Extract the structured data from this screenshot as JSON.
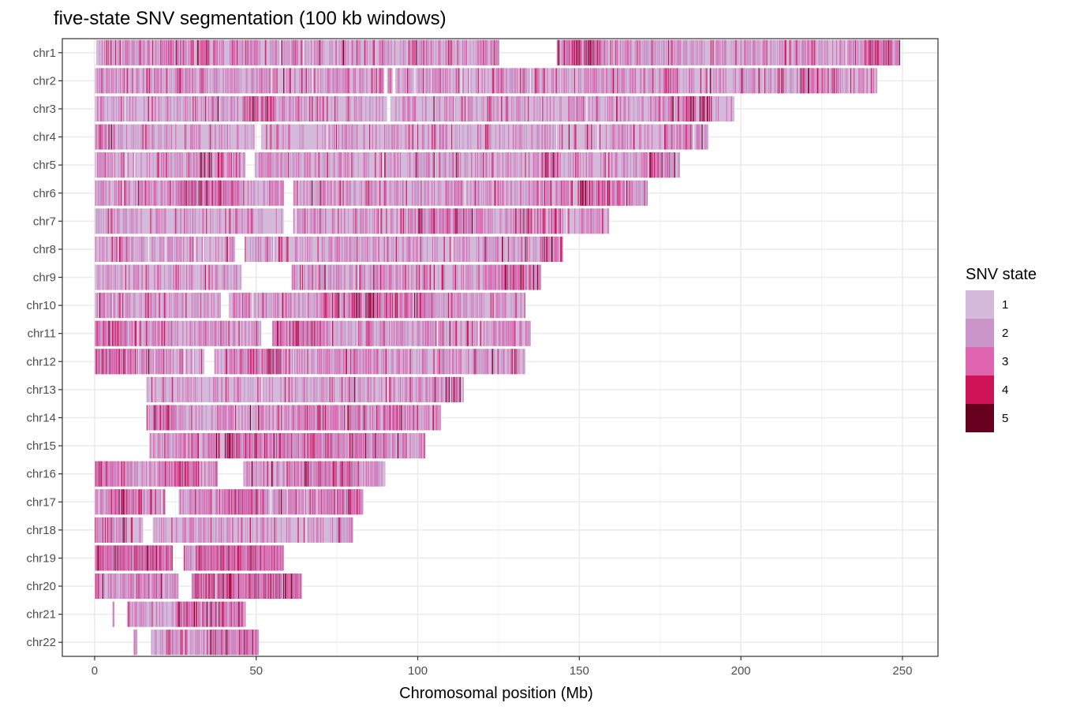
{
  "chart_data": {
    "type": "heatmap",
    "title": "five-state SNV segmentation (100 kb windows)",
    "xlabel": "Chromosomal position (Mb)",
    "ylabel": "",
    "xlim": [
      -10,
      261
    ],
    "x_ticks": [
      0,
      50,
      100,
      150,
      200,
      250
    ],
    "grid": true,
    "legend": {
      "title": "SNV state",
      "placement": "right",
      "states": [
        {
          "label": "1",
          "color": "#D4B9DA"
        },
        {
          "label": "2",
          "color": "#C994C7"
        },
        {
          "label": "3",
          "color": "#DF65B0"
        },
        {
          "label": "4",
          "color": "#CE1256"
        },
        {
          "label": "5",
          "color": "#67001F"
        }
      ]
    },
    "chromosomes": [
      {
        "name": "chr1",
        "start": 0.5,
        "end": 249,
        "gaps": [
          [
            125,
            143
          ]
        ],
        "density": 0.26,
        "hot": [
          [
            143,
            158,
            0.6
          ],
          [
            238,
            249,
            0.45
          ],
          [
            20,
            40,
            0.3
          ]
        ]
      },
      {
        "name": "chr2",
        "start": 0.1,
        "end": 242,
        "gaps": [
          [
            89.5,
            90.5
          ],
          [
            92,
            93
          ]
        ],
        "density": 0.24,
        "hot": [
          [
            25,
            30,
            0.4
          ],
          [
            175,
            180,
            0.35
          ],
          [
            218,
            230,
            0.4
          ]
        ]
      },
      {
        "name": "chr3",
        "start": 0.1,
        "end": 198,
        "gaps": [
          [
            90.5,
            91.5
          ]
        ],
        "density": 0.18,
        "hot": [
          [
            45,
            55,
            0.45
          ],
          [
            178,
            190,
            0.4
          ]
        ]
      },
      {
        "name": "chr4",
        "start": 0.1,
        "end": 190,
        "gaps": [
          [
            49.5,
            51.5
          ]
        ],
        "density": 0.17,
        "hot": [
          [
            180,
            188,
            0.4
          ],
          [
            0,
            6,
            0.35
          ]
        ]
      },
      {
        "name": "chr5",
        "start": 0.1,
        "end": 181,
        "gaps": [
          [
            46.5,
            49.5
          ]
        ],
        "density": 0.22,
        "hot": [
          [
            138,
            144,
            0.5
          ],
          [
            170,
            178,
            0.45
          ],
          [
            30,
            45,
            0.3
          ]
        ]
      },
      {
        "name": "chr6",
        "start": 0.1,
        "end": 171,
        "gaps": [
          [
            58.5,
            61.5
          ]
        ],
        "density": 0.25,
        "hot": [
          [
            25,
            45,
            0.55
          ],
          [
            150,
            165,
            0.4
          ]
        ]
      },
      {
        "name": "chr7",
        "start": 0.1,
        "end": 159,
        "gaps": [
          [
            58.5,
            61.5
          ]
        ],
        "density": 0.2,
        "hot": [
          [
            100,
            120,
            0.5
          ],
          [
            130,
            145,
            0.35
          ]
        ]
      },
      {
        "name": "chr8",
        "start": 0.1,
        "end": 145,
        "gaps": [
          [
            43.5,
            46.5
          ]
        ],
        "density": 0.2,
        "hot": [
          [
            138,
            145,
            0.5
          ]
        ]
      },
      {
        "name": "chr9",
        "start": 0.1,
        "end": 138,
        "gaps": [
          [
            45.5,
            61
          ]
        ],
        "density": 0.22,
        "hot": [
          [
            120,
            138,
            0.5
          ]
        ]
      },
      {
        "name": "chr10",
        "start": 0.1,
        "end": 133,
        "gaps": [
          [
            39,
            41.5
          ]
        ],
        "density": 0.25,
        "hot": [
          [
            70,
            105,
            0.4
          ]
        ]
      },
      {
        "name": "chr11",
        "start": 0.1,
        "end": 135,
        "gaps": [
          [
            51.5,
            55
          ]
        ],
        "density": 0.27,
        "hot": [
          [
            0,
            10,
            0.55
          ],
          [
            55,
            70,
            0.6
          ]
        ]
      },
      {
        "name": "chr12",
        "start": 0.1,
        "end": 133,
        "gaps": [
          [
            34,
            37
          ]
        ],
        "density": 0.28,
        "hot": [
          [
            0,
            15,
            0.45
          ],
          [
            45,
            58,
            0.55
          ]
        ]
      },
      {
        "name": "chr13",
        "start": 16,
        "end": 114,
        "gaps": [],
        "density": 0.17,
        "hot": [
          [
            105,
            114,
            0.35
          ]
        ]
      },
      {
        "name": "chr14",
        "start": 16,
        "end": 107,
        "gaps": [],
        "density": 0.25,
        "hot": [
          [
            18,
            25,
            0.55
          ],
          [
            60,
            100,
            0.3
          ]
        ]
      },
      {
        "name": "chr15",
        "start": 17,
        "end": 102,
        "gaps": [],
        "density": 0.3,
        "hot": [
          [
            40,
            90,
            0.4
          ]
        ]
      },
      {
        "name": "chr16",
        "start": 0.1,
        "end": 90,
        "gaps": [
          [
            38,
            46
          ]
        ],
        "density": 0.3,
        "hot": [
          [
            0,
            5,
            0.6
          ],
          [
            20,
            32,
            0.5
          ],
          [
            65,
            80,
            0.5
          ]
        ]
      },
      {
        "name": "chr17",
        "start": 0.1,
        "end": 83,
        "gaps": [
          [
            22,
            26
          ]
        ],
        "density": 0.33,
        "hot": [
          [
            5,
            15,
            0.45
          ],
          [
            40,
            52,
            0.5
          ],
          [
            70,
            82,
            0.45
          ]
        ]
      },
      {
        "name": "chr18",
        "start": 0.1,
        "end": 80,
        "gaps": [
          [
            15,
            18
          ]
        ],
        "density": 0.18,
        "hot": [
          [
            0,
            10,
            0.3
          ]
        ]
      },
      {
        "name": "chr19",
        "start": 0.1,
        "end": 58.5,
        "gaps": [
          [
            24,
            27.5
          ]
        ],
        "density": 0.45,
        "hot": [
          [
            0,
            24,
            0.75
          ],
          [
            32,
            58,
            0.75
          ]
        ]
      },
      {
        "name": "chr20",
        "start": 0.1,
        "end": 64,
        "gaps": [
          [
            26,
            30
          ]
        ],
        "density": 0.35,
        "hot": [
          [
            30,
            64,
            0.55
          ]
        ]
      },
      {
        "name": "chr21",
        "start": 5.5,
        "end": 46.7,
        "gaps": [
          [
            6,
            10
          ]
        ],
        "density": 0.25,
        "hot": [
          [
            25,
            46,
            0.45
          ]
        ]
      },
      {
        "name": "chr22",
        "start": 12,
        "end": 50.8,
        "gaps": [
          [
            13,
            17.5
          ]
        ],
        "density": 0.3,
        "hot": [
          [
            35,
            50,
            0.55
          ]
        ]
      }
    ]
  }
}
